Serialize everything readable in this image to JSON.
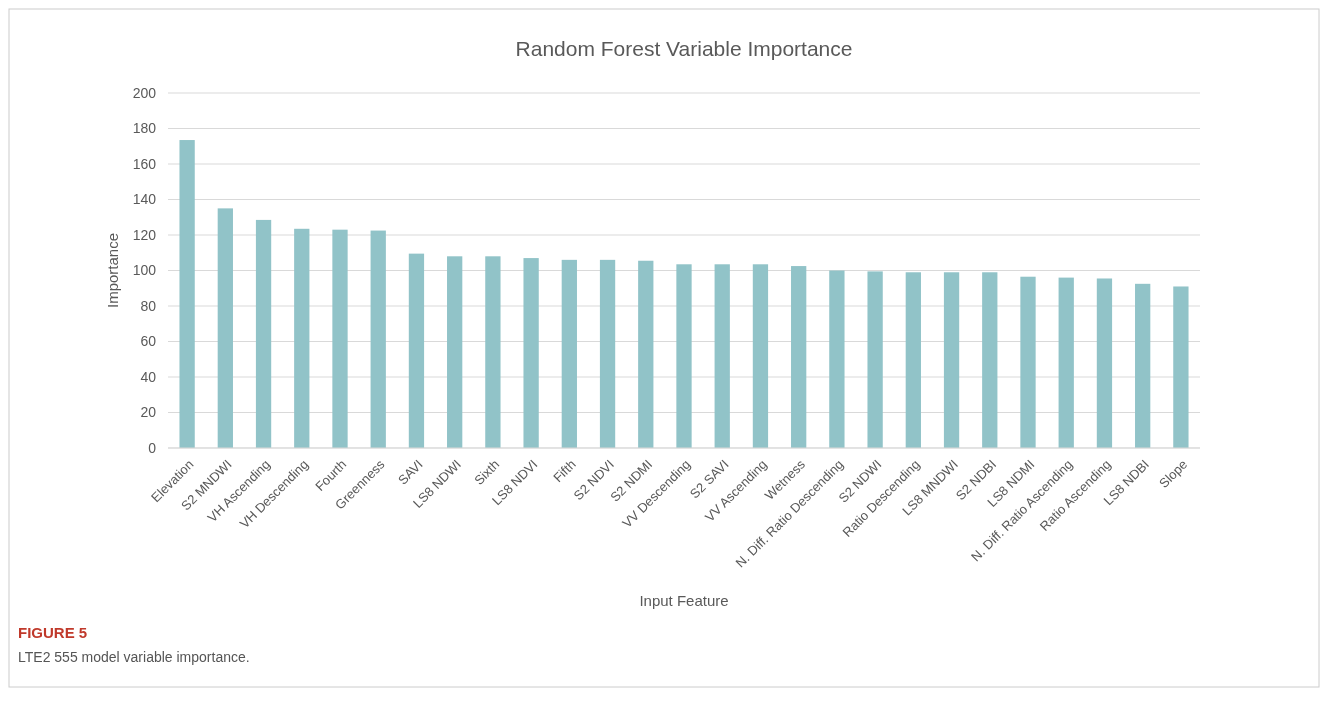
{
  "chart_data": {
    "type": "bar",
    "title": "Random Forest Variable Importance",
    "xlabel": "Input Feature",
    "ylabel": "Importance",
    "categories": [
      "Elevation",
      "S2 MNDWI",
      "VH Ascending",
      "VH Descending",
      "Fourth",
      "Greenness",
      "SAVI",
      "LS8 NDWI",
      "Sixth",
      "LS8 NDVI",
      "Fifth",
      "S2 NDVI",
      "S2 NDMI",
      "VV Descending",
      "S2 SAVI",
      "VV Ascending",
      "Wetness",
      "N. Diff. Ratio Descending",
      "S2 NDWI",
      "Ratio Descending",
      "LS8 MNDWI",
      "S2 NDBI",
      "LS8 NDMI",
      "N. Diff. Ratio Ascending",
      "Ratio Ascending",
      "LS8 NDBI",
      "Slope"
    ],
    "values": [
      173.5,
      135,
      128.5,
      123.5,
      123,
      122.5,
      109.5,
      108,
      108,
      107,
      106,
      106,
      105.5,
      103.5,
      103.5,
      103.5,
      102.5,
      100,
      99.5,
      99,
      99,
      99,
      96.5,
      96,
      95.5,
      92.5,
      91
    ],
    "color": "#91c3c8",
    "ylim": [
      0,
      200
    ],
    "yticks": [
      0,
      20,
      40,
      60,
      80,
      100,
      120,
      140,
      160,
      180,
      200
    ],
    "grid": "y",
    "annotations": [
      "FIGURE 5",
      "LTE2 555 model variable importance."
    ]
  }
}
